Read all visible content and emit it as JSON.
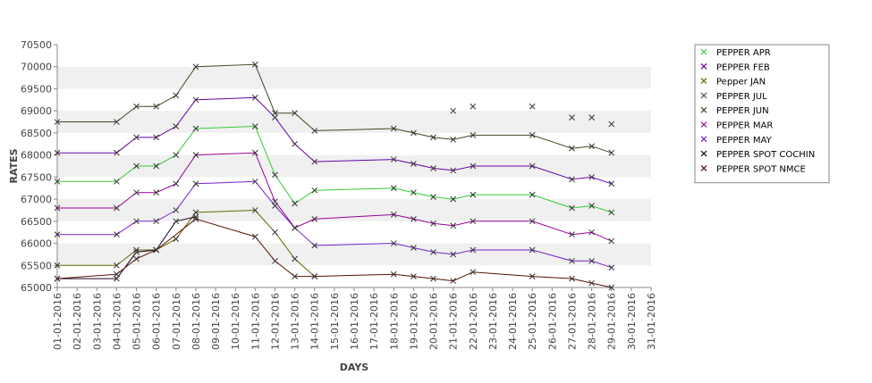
{
  "chart_data": {
    "type": "line",
    "title": "",
    "xlabel": "DAYS",
    "ylabel": "RATES",
    "ylim": [
      65000,
      70500
    ],
    "yticks": [
      65000,
      65500,
      66000,
      66500,
      67000,
      67500,
      68000,
      68500,
      69000,
      69500,
      70000,
      70500
    ],
    "xlim": [
      "01-01-2016",
      "31-01-2016"
    ],
    "xticks": [
      "01-01-2016",
      "02-01-2016",
      "03-01-2016",
      "04-01-2016",
      "05-01-2016",
      "06-01-2016",
      "07-01-2016",
      "08-01-2016",
      "09-01-2016",
      "10-01-2016",
      "11-01-2016",
      "12-01-2016",
      "13-01-2016",
      "14-01-2016",
      "15-01-2016",
      "16-01-2016",
      "17-01-2016",
      "18-01-2016",
      "19-01-2016",
      "20-01-2016",
      "21-01-2016",
      "22-01-2016",
      "23-01-2016",
      "24-01-2016",
      "25-01-2016",
      "26-01-2016",
      "27-01-2016",
      "28-01-2016",
      "29-01-2016",
      "30-01-2016",
      "31-01-2016"
    ],
    "grid": "horizontal bands",
    "legend_position": "right",
    "series": [
      {
        "name": "PEPPER APR",
        "color": "#33cc33",
        "x": [
          "01-01-2016",
          "04-01-2016",
          "05-01-2016",
          "06-01-2016",
          "07-01-2016",
          "08-01-2016",
          "11-01-2016",
          "12-01-2016",
          "13-01-2016",
          "14-01-2016",
          "18-01-2016",
          "19-01-2016",
          "20-01-2016",
          "21-01-2016",
          "22-01-2016",
          "25-01-2016",
          "27-01-2016",
          "28-01-2016",
          "29-01-2016"
        ],
        "y": [
          67400,
          67400,
          67750,
          67750,
          68000,
          68600,
          68650,
          67550,
          66900,
          67200,
          67250,
          67150,
          67050,
          67000,
          67100,
          67100,
          66800,
          66850,
          66700
        ]
      },
      {
        "name": "PEPPER FEB",
        "color": "#6600aa",
        "x": [
          "01-01-2016",
          "04-01-2016",
          "05-01-2016",
          "06-01-2016",
          "07-01-2016",
          "08-01-2016",
          "11-01-2016",
          "12-01-2016",
          "13-01-2016",
          "14-01-2016",
          "18-01-2016",
          "19-01-2016",
          "20-01-2016",
          "21-01-2016",
          "22-01-2016",
          "25-01-2016",
          "27-01-2016",
          "28-01-2016",
          "29-01-2016"
        ],
        "y": [
          68050,
          68050,
          68400,
          68400,
          68650,
          69250,
          69300,
          68850,
          68250,
          67850,
          67900,
          67800,
          67700,
          67650,
          67750,
          67750,
          67450,
          67500,
          67350
        ]
      },
      {
        "name": "Pepper JAN",
        "color": "#666600",
        "x": [
          "01-01-2016",
          "04-01-2016",
          "05-01-2016",
          "06-01-2016",
          "07-01-2016",
          "08-01-2016",
          "11-01-2016",
          "12-01-2016",
          "13-01-2016",
          "14-01-2016"
        ],
        "y": [
          65500,
          65500,
          65850,
          65850,
          66100,
          66700,
          66750,
          66250,
          65650,
          65250
        ]
      },
      {
        "name": "PEPPER JUL",
        "color": "#555555",
        "marker_only": true,
        "x": [
          "21-01-2016",
          "22-01-2016",
          "25-01-2016",
          "27-01-2016",
          "28-01-2016",
          "29-01-2016"
        ],
        "y": [
          69000,
          69100,
          69100,
          68850,
          68850,
          68700
        ]
      },
      {
        "name": "PEPPER JUN",
        "color": "#444422",
        "x": [
          "01-01-2016",
          "04-01-2016",
          "05-01-2016",
          "06-01-2016",
          "07-01-2016",
          "08-01-2016",
          "11-01-2016",
          "12-01-2016",
          "13-01-2016",
          "14-01-2016",
          "18-01-2016",
          "19-01-2016",
          "20-01-2016",
          "21-01-2016",
          "22-01-2016",
          "25-01-2016",
          "27-01-2016",
          "28-01-2016",
          "29-01-2016"
        ],
        "y": [
          68750,
          68750,
          69100,
          69100,
          69350,
          70000,
          70050,
          68950,
          68950,
          68550,
          68600,
          68500,
          68400,
          68350,
          68450,
          68450,
          68150,
          68200,
          68050
        ]
      },
      {
        "name": "PEPPER MAR",
        "color": "#990099",
        "x": [
          "01-01-2016",
          "04-01-2016",
          "05-01-2016",
          "06-01-2016",
          "07-01-2016",
          "08-01-2016",
          "11-01-2016",
          "12-01-2016",
          "13-01-2016",
          "14-01-2016",
          "18-01-2016",
          "19-01-2016",
          "20-01-2016",
          "21-01-2016",
          "22-01-2016",
          "25-01-2016",
          "27-01-2016",
          "28-01-2016",
          "29-01-2016"
        ],
        "y": [
          66800,
          66800,
          67150,
          67150,
          67350,
          68000,
          68050,
          66950,
          66350,
          66550,
          66650,
          66550,
          66450,
          66400,
          66500,
          66500,
          66200,
          66250,
          66050
        ]
      },
      {
        "name": "PEPPER MAY",
        "color": "#7722cc",
        "x": [
          "01-01-2016",
          "04-01-2016",
          "05-01-2016",
          "06-01-2016",
          "07-01-2016",
          "08-01-2016",
          "11-01-2016",
          "12-01-2016",
          "13-01-2016",
          "14-01-2016",
          "18-01-2016",
          "19-01-2016",
          "20-01-2016",
          "21-01-2016",
          "22-01-2016",
          "25-01-2016",
          "27-01-2016",
          "28-01-2016",
          "29-01-2016"
        ],
        "y": [
          66200,
          66200,
          66500,
          66500,
          66750,
          67350,
          67400,
          66850,
          66350,
          65950,
          66000,
          65900,
          65800,
          65750,
          65850,
          65850,
          65600,
          65600,
          65450
        ]
      },
      {
        "name": "PEPPER SPOT COCHIN",
        "color": "#220022",
        "x": [
          "01-01-2016",
          "04-01-2016",
          "05-01-2016",
          "06-01-2016",
          "07-01-2016",
          "08-01-2016"
        ],
        "y": [
          65200,
          65200,
          65800,
          65850,
          66500,
          66600
        ]
      },
      {
        "name": "PEPPER SPOT NMCE",
        "color": "#551100",
        "x": [
          "01-01-2016",
          "04-01-2016",
          "05-01-2016",
          "06-01-2016",
          "08-01-2016",
          "11-01-2016",
          "12-01-2016",
          "13-01-2016",
          "14-01-2016",
          "18-01-2016",
          "19-01-2016",
          "20-01-2016",
          "21-01-2016",
          "22-01-2016",
          "25-01-2016",
          "27-01-2016",
          "28-01-2016",
          "29-01-2016"
        ],
        "y": [
          65200,
          65300,
          65650,
          65850,
          66550,
          66150,
          65600,
          65250,
          65250,
          65300,
          65250,
          65200,
          65150,
          65350,
          65250,
          65200,
          65100,
          65000
        ]
      }
    ]
  }
}
